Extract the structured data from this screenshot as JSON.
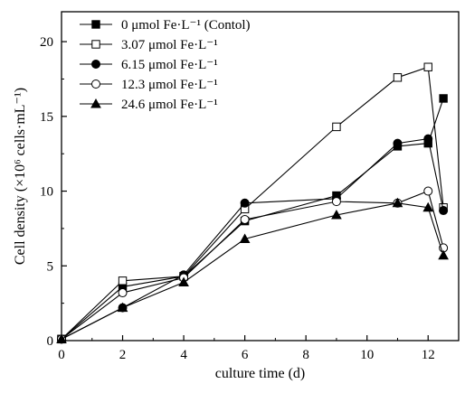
{
  "chart_data": {
    "type": "line",
    "xlabel": "culture time (d)",
    "ylabel": "Cell density (×10⁶ cells·mL⁻¹)",
    "xlim": [
      0,
      13
    ],
    "ylim": [
      0,
      22
    ],
    "xticks": [
      0,
      2,
      4,
      6,
      8,
      10,
      12
    ],
    "yticks": [
      0,
      5,
      10,
      15,
      20
    ],
    "x": [
      0,
      2,
      4,
      6,
      9,
      11,
      12,
      12.5
    ],
    "grid": false,
    "legend_position": "top-left",
    "series": [
      {
        "name": "0 μmol Fe·L⁻¹ (Contol)",
        "marker": "square-filled",
        "values": [
          0.1,
          3.6,
          4.3,
          8.0,
          9.7,
          13.0,
          13.2,
          16.2
        ]
      },
      {
        "name": "3.07 μmol Fe·L⁻¹",
        "marker": "square-open",
        "values": [
          0.1,
          4.0,
          4.3,
          8.8,
          14.3,
          17.6,
          18.3,
          8.9
        ]
      },
      {
        "name": "6.15 μmol Fe·L⁻¹",
        "marker": "circle-filled",
        "values": [
          0.1,
          2.2,
          4.4,
          9.2,
          9.5,
          13.2,
          13.5,
          8.7
        ]
      },
      {
        "name": "12.3 μmol Fe·L⁻¹",
        "marker": "circle-open",
        "values": [
          0.1,
          3.2,
          4.2,
          8.1,
          9.3,
          9.2,
          10.0,
          6.2
        ]
      },
      {
        "name": "24.6 μmol Fe·L⁻¹",
        "marker": "triangle-filled",
        "values": [
          0.1,
          2.2,
          3.9,
          6.8,
          8.4,
          9.2,
          8.9,
          5.7
        ]
      }
    ]
  }
}
